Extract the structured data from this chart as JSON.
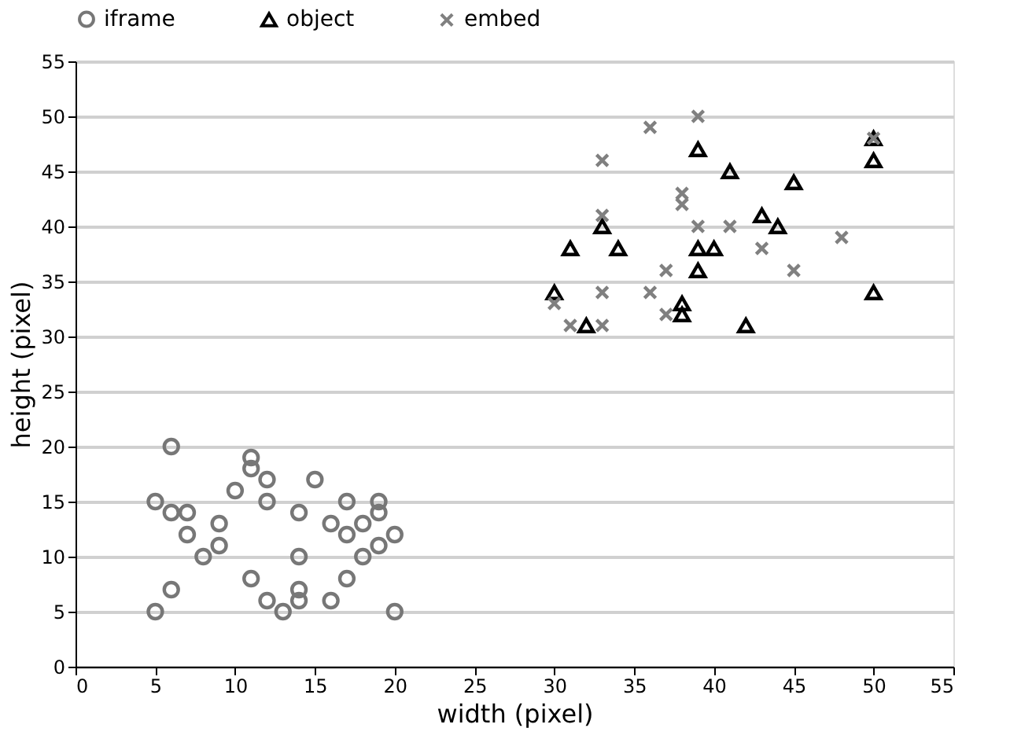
{
  "chart_data": {
    "type": "scatter",
    "xlabel": "width (pixel)",
    "ylabel": "height (pixel)",
    "xlim": [
      0,
      55
    ],
    "xticks": [
      0,
      5,
      10,
      15,
      20,
      25,
      30,
      35,
      40,
      45,
      50,
      55
    ],
    "ylim": [
      0,
      55
    ],
    "yticks": [
      0,
      5,
      10,
      15,
      20,
      25,
      30,
      35,
      40,
      45,
      50,
      55
    ],
    "grid": "y",
    "legend": "top",
    "series": [
      {
        "name": "iframe",
        "color": "#777777",
        "marker": "circle",
        "x": [
          5,
          6,
          6,
          7,
          7,
          5,
          6,
          8,
          9,
          9,
          10,
          11,
          11,
          11,
          12,
          12,
          12,
          13,
          14,
          14,
          14,
          14,
          15,
          16,
          16,
          17,
          17,
          17,
          18,
          18,
          19,
          19,
          19,
          20,
          20
        ],
        "values": [
          15,
          20,
          14,
          14,
          12,
          5,
          7,
          10,
          13,
          11,
          16,
          19,
          18,
          8,
          17,
          15,
          6,
          5,
          14,
          10,
          7,
          6,
          17,
          13,
          6,
          15,
          12,
          8,
          13,
          10,
          15,
          14,
          11,
          12,
          5
        ]
      },
      {
        "name": "object",
        "color": "#000000",
        "marker": "triangle",
        "x": [
          30,
          31,
          32,
          33,
          34,
          38,
          38,
          39,
          39,
          39,
          40,
          41,
          42,
          43,
          44,
          45,
          50,
          50,
          50
        ],
        "values": [
          34,
          38,
          31,
          40,
          38,
          33,
          32,
          47,
          38,
          36,
          38,
          45,
          31,
          41,
          40,
          44,
          48,
          46,
          34
        ]
      },
      {
        "name": "embed",
        "color": "#808080",
        "marker": "cross",
        "x": [
          30,
          31,
          33,
          33,
          33,
          33,
          36,
          36,
          37,
          37,
          38,
          38,
          39,
          39,
          41,
          43,
          45,
          48,
          50
        ],
        "values": [
          33,
          31,
          31,
          34,
          41,
          46,
          49,
          34,
          36,
          32,
          43,
          42,
          50,
          40,
          40,
          38,
          36,
          39,
          48
        ]
      }
    ]
  }
}
